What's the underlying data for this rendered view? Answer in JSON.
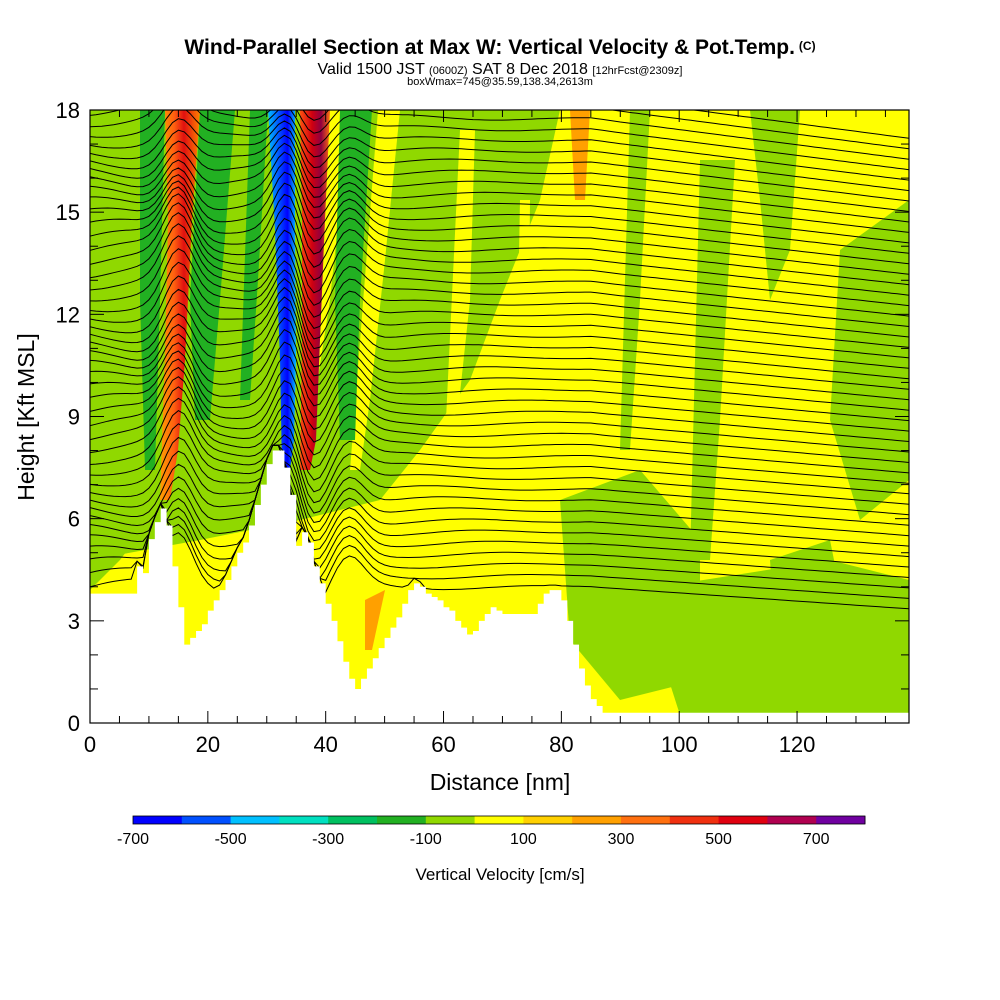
{
  "header": {
    "title": "Wind-Parallel Section at Max W: Vertical Velocity & Pot.Temp.",
    "copyright": "(C)",
    "valid_prefix": "Valid 1500 JST",
    "valid_utc": "(0600Z)",
    "valid_date": "SAT 8 Dec 2018",
    "forecast": "[12hrFcst@2309z]",
    "box_info": "boxWmax=745@35.59,138.34,2613m"
  },
  "chart_data": {
    "type": "heatmap",
    "xlabel": "Distance [nm]",
    "ylabel": "Height [Kft MSL]",
    "xlim": [
      0,
      139
    ],
    "ylim": [
      0,
      18
    ],
    "x_ticks": [
      0,
      20,
      40,
      60,
      80,
      100,
      120
    ],
    "y_ticks": [
      0,
      3,
      6,
      9,
      12,
      15,
      18
    ],
    "colorbar": {
      "title": "Vertical Velocity [cm/s]",
      "labels": [
        "-700",
        "-500",
        "-300",
        "-100",
        "100",
        "300",
        "500",
        "700"
      ],
      "colors": [
        "#0000ff",
        "#0050ff",
        "#00c0ff",
        "#00e0c0",
        "#00c060",
        "#22b022",
        "#90d800",
        "#ffff00",
        "#ffd000",
        "#ffa000",
        "#ff7010",
        "#f03010",
        "#e00010",
        "#b00050",
        "#7000a0"
      ]
    },
    "terrain_profile_kft": [
      [
        0,
        3.8
      ],
      [
        7,
        3.8
      ],
      [
        8,
        4.6
      ],
      [
        9,
        4.4
      ],
      [
        10,
        5.4
      ],
      [
        11,
        5.9
      ],
      [
        12,
        6.3
      ],
      [
        13,
        5.8
      ],
      [
        14,
        4.6
      ],
      [
        15,
        3.4
      ],
      [
        16,
        2.3
      ],
      [
        17,
        2.5
      ],
      [
        18,
        2.7
      ],
      [
        19,
        2.9
      ],
      [
        20,
        3.3
      ],
      [
        21,
        3.6
      ],
      [
        22,
        3.9
      ],
      [
        23,
        4.2
      ],
      [
        24,
        4.6
      ],
      [
        25,
        5.0
      ],
      [
        26,
        5.3
      ],
      [
        27,
        5.8
      ],
      [
        28,
        6.4
      ],
      [
        29,
        7.0
      ],
      [
        30,
        7.6
      ],
      [
        31,
        8.0
      ],
      [
        32,
        8.0
      ],
      [
        33,
        7.5
      ],
      [
        34,
        6.7
      ],
      [
        35,
        5.2
      ],
      [
        36,
        5.6
      ],
      [
        37,
        5.3
      ],
      [
        38,
        4.6
      ],
      [
        39,
        4.1
      ],
      [
        40,
        3.5
      ],
      [
        41,
        3.0
      ],
      [
        42,
        2.4
      ],
      [
        43,
        1.8
      ],
      [
        44,
        1.3
      ],
      [
        45,
        1.0
      ],
      [
        46,
        1.3
      ],
      [
        47,
        1.6
      ],
      [
        48,
        1.9
      ],
      [
        49,
        2.2
      ],
      [
        50,
        2.5
      ],
      [
        51,
        2.8
      ],
      [
        52,
        3.1
      ],
      [
        53,
        3.5
      ],
      [
        54,
        3.9
      ],
      [
        55,
        4.1
      ],
      [
        56,
        4.0
      ],
      [
        57,
        3.8
      ],
      [
        58,
        3.7
      ],
      [
        59,
        3.6
      ],
      [
        60,
        3.4
      ],
      [
        61,
        3.3
      ],
      [
        62,
        3.0
      ],
      [
        63,
        2.8
      ],
      [
        64,
        2.6
      ],
      [
        65,
        2.7
      ],
      [
        66,
        3.0
      ],
      [
        67,
        3.2
      ],
      [
        68,
        3.4
      ],
      [
        69,
        3.3
      ],
      [
        70,
        3.2
      ],
      [
        74,
        3.2
      ],
      [
        75,
        3.2
      ],
      [
        76,
        3.5
      ],
      [
        77,
        3.8
      ],
      [
        78,
        3.9
      ],
      [
        79,
        3.9
      ],
      [
        80,
        3.6
      ],
      [
        81,
        3.0
      ],
      [
        82,
        2.3
      ],
      [
        83,
        1.6
      ],
      [
        84,
        1.1
      ],
      [
        85,
        0.7
      ],
      [
        86,
        0.5
      ],
      [
        87,
        0.3
      ],
      [
        139,
        0.3
      ]
    ]
  }
}
